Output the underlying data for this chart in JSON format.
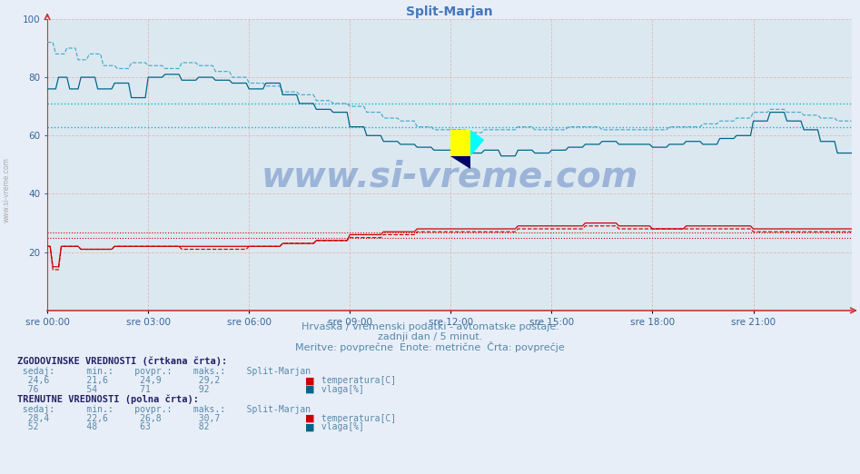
{
  "title": "Split-Marjan",
  "title_color": "#4477bb",
  "bg_color": "#e8eef8",
  "plot_bg_color": "#dce8f0",
  "text_color": "#4466aa",
  "watermark": "www.si-vreme.com",
  "subtitle1": "Hrvaška / vremenski podatki - avtomatske postaje.",
  "subtitle2": "zadnji dan / 5 minut.",
  "subtitle3": "Meritve: povprečne  Enote: metrične  Črta: povprečje",
  "x_labels": [
    "sre 00:00",
    "sre 03:00",
    "sre 06:00",
    "sre 09:00",
    "sre 12:00",
    "sre 15:00",
    "sre 18:00",
    "sre 21:00"
  ],
  "x_ticks_idx": [
    0,
    36,
    72,
    108,
    144,
    180,
    216,
    252
  ],
  "n_points": 288,
  "ylim": [
    0,
    100
  ],
  "y_ticks": [
    20,
    40,
    60,
    80,
    100
  ],
  "hist_avg_vlaga": 71,
  "hist_avg_temp": 24.9,
  "curr_avg_vlaga": 63,
  "curr_avg_temp": 26.8,
  "temp_color": "#cc0000",
  "vlaga_curr_color": "#006688",
  "vlaga_hist_color": "#44aacc",
  "avg_vlaga_color": "#00bbcc",
  "avg_temp_color": "#cc0000",
  "grid_v_color": "#ddbbbb",
  "grid_h_color": "#ddbbbb",
  "axis_color": "#cc3333",
  "bottom_text_color": "#5588aa",
  "label_color": "#336699"
}
